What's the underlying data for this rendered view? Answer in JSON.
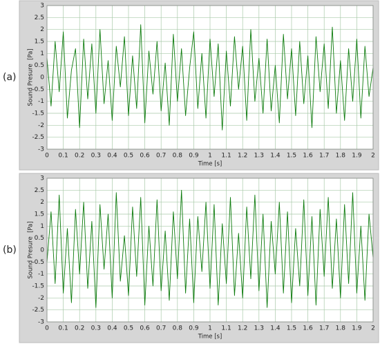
{
  "chart_data": [
    {
      "type": "line",
      "panel_label": "(a)",
      "ylabel": "Sound Presure  [Pa]",
      "xlabel": "Time [s]",
      "color": "#0a7a0a",
      "grid": true,
      "xlim": [
        0,
        2
      ],
      "ylim": [
        -3,
        3
      ],
      "xticks": [
        0,
        0.1,
        0.2,
        0.3,
        0.4,
        0.5,
        0.6,
        0.7,
        0.8,
        0.9,
        1,
        1.1,
        1.2,
        1.3,
        1.4,
        1.5,
        1.6,
        1.7,
        1.8,
        1.9,
        2
      ],
      "yticks": [
        -3,
        -2.5,
        -2,
        -1.5,
        -1,
        -0.5,
        0,
        0.5,
        1,
        1.5,
        2,
        2.5,
        3
      ],
      "x": [
        0,
        0.025,
        0.05,
        0.075,
        0.1,
        0.125,
        0.15,
        0.175,
        0.2,
        0.225,
        0.25,
        0.275,
        0.3,
        0.325,
        0.35,
        0.375,
        0.4,
        0.425,
        0.45,
        0.475,
        0.5,
        0.525,
        0.55,
        0.575,
        0.6,
        0.625,
        0.65,
        0.675,
        0.7,
        0.725,
        0.75,
        0.775,
        0.8,
        0.825,
        0.85,
        0.875,
        0.9,
        0.925,
        0.95,
        0.975,
        1,
        1.025,
        1.05,
        1.075,
        1.1,
        1.125,
        1.15,
        1.175,
        1.2,
        1.225,
        1.25,
        1.275,
        1.3,
        1.325,
        1.35,
        1.375,
        1.4,
        1.425,
        1.45,
        1.475,
        1.5,
        1.525,
        1.55,
        1.575,
        1.6,
        1.625,
        1.65,
        1.675,
        1.7,
        1.725,
        1.75,
        1.775,
        1.8,
        1.825,
        1.85,
        1.875,
        1.9,
        1.925,
        1.95,
        1.975,
        2
      ],
      "values": [
        0.8,
        -1.2,
        1.5,
        -0.6,
        1.9,
        -1.7,
        0.3,
        1.2,
        -2.1,
        1.6,
        -0.9,
        1.4,
        -1.5,
        2.0,
        -1.1,
        0.7,
        -1.8,
        1.3,
        -0.4,
        1.7,
        -1.6,
        0.9,
        -1.3,
        2.2,
        -1.9,
        1.1,
        -0.7,
        1.5,
        -1.4,
        0.6,
        -2.0,
        1.8,
        -1.0,
        1.2,
        -1.6,
        0.4,
        1.9,
        -1.3,
        1.0,
        -1.7,
        1.6,
        -0.8,
        1.4,
        -2.2,
        1.1,
        -1.2,
        1.7,
        -0.5,
        1.3,
        -1.8,
        2.0,
        -1.0,
        0.8,
        -1.5,
        1.6,
        -1.4,
        0.5,
        -1.9,
        1.8,
        -0.9,
        1.2,
        -1.6,
        1.5,
        -1.1,
        0.9,
        -2.1,
        1.7,
        -0.6,
        1.4,
        -1.3,
        2.1,
        -1.5,
        0.7,
        -1.8,
        1.2,
        -1.0,
        1.6,
        -1.7,
        1.3,
        -0.8,
        0.4
      ]
    },
    {
      "type": "line",
      "panel_label": "(b)",
      "ylabel": "Sound Presure  [Pa]",
      "xlabel": "Time [s]",
      "color": "#0a7a0a",
      "grid": true,
      "xlim": [
        0,
        2
      ],
      "ylim": [
        -3,
        3
      ],
      "xticks": [
        0,
        0.1,
        0.2,
        0.3,
        0.4,
        0.5,
        0.6,
        0.7,
        0.8,
        0.9,
        1,
        1.1,
        1.2,
        1.3,
        1.4,
        1.5,
        1.6,
        1.7,
        1.8,
        1.9,
        2
      ],
      "yticks": [
        -3,
        -2.5,
        -2,
        -1.5,
        -1,
        -0.5,
        0,
        0.5,
        1,
        1.5,
        2,
        2.5,
        3
      ],
      "x": [
        0,
        0.025,
        0.05,
        0.075,
        0.1,
        0.125,
        0.15,
        0.175,
        0.2,
        0.225,
        0.25,
        0.275,
        0.3,
        0.325,
        0.35,
        0.375,
        0.4,
        0.425,
        0.45,
        0.475,
        0.5,
        0.525,
        0.55,
        0.575,
        0.6,
        0.625,
        0.65,
        0.675,
        0.7,
        0.725,
        0.75,
        0.775,
        0.8,
        0.825,
        0.85,
        0.875,
        0.9,
        0.925,
        0.95,
        0.975,
        1,
        1.025,
        1.05,
        1.075,
        1.1,
        1.125,
        1.15,
        1.175,
        1.2,
        1.225,
        1.25,
        1.275,
        1.3,
        1.325,
        1.35,
        1.375,
        1.4,
        1.425,
        1.45,
        1.475,
        1.5,
        1.525,
        1.55,
        1.575,
        1.6,
        1.625,
        1.65,
        1.675,
        1.7,
        1.725,
        1.75,
        1.775,
        1.8,
        1.825,
        1.85,
        1.875,
        1.9,
        1.925,
        1.95,
        1.975,
        2
      ],
      "values": [
        -0.5,
        1.6,
        -1.4,
        2.3,
        -1.8,
        0.9,
        -2.2,
        1.7,
        -1.0,
        2.0,
        -1.6,
        1.2,
        -2.4,
        1.9,
        -0.8,
        1.5,
        -2.0,
        2.4,
        -1.3,
        0.6,
        -1.9,
        1.8,
        -1.1,
        2.2,
        -2.3,
        1.0,
        -1.5,
        2.1,
        -1.7,
        0.8,
        -2.1,
        1.6,
        -1.2,
        2.5,
        -1.8,
        1.3,
        -2.2,
        1.4,
        -0.9,
        2.0,
        -1.6,
        1.9,
        -2.3,
        1.1,
        -1.4,
        2.2,
        -1.9,
        0.7,
        -2.0,
        1.8,
        -1.2,
        2.3,
        -1.7,
        1.5,
        -2.4,
        1.2,
        -1.0,
        2.0,
        -1.8,
        1.6,
        -2.2,
        0.9,
        -1.5,
        2.1,
        -1.9,
        1.4,
        -2.3,
        1.7,
        -1.1,
        2.2,
        -1.6,
        1.3,
        -2.0,
        1.9,
        -1.4,
        2.4,
        -1.8,
        1.0,
        -2.1,
        1.5,
        -0.3
      ]
    }
  ]
}
